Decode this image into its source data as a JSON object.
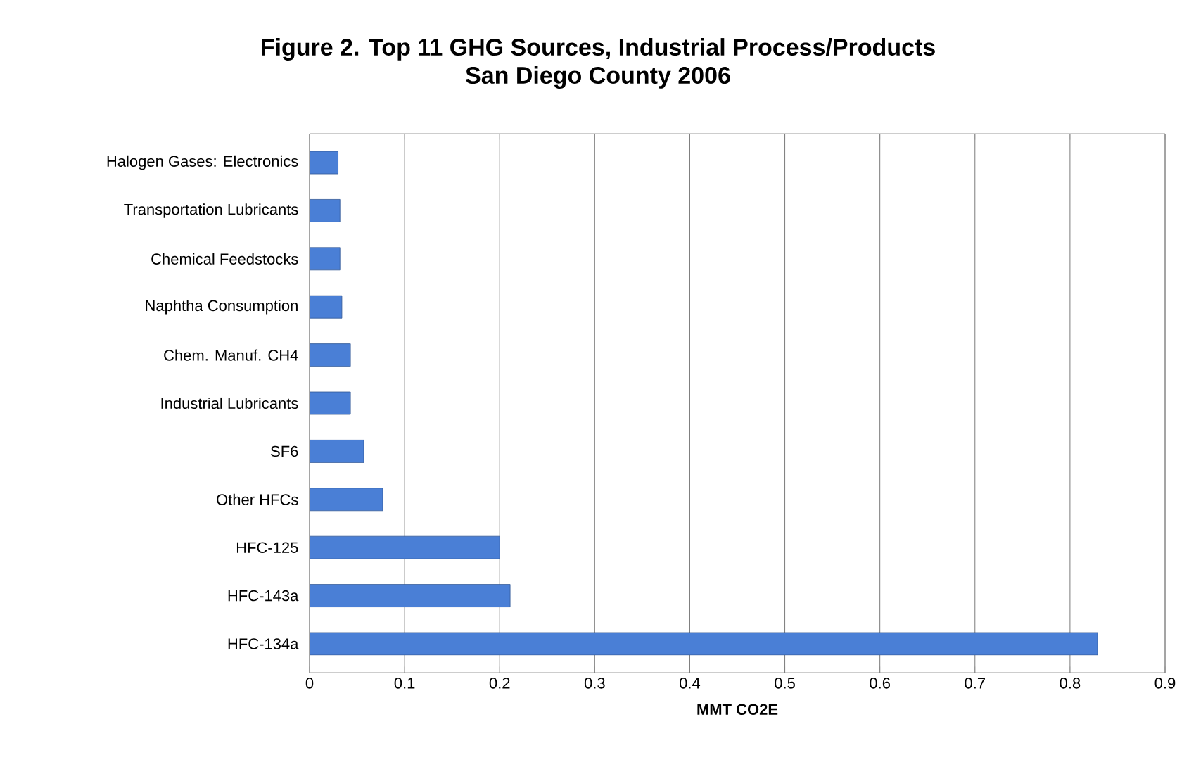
{
  "chart_data": {
    "type": "bar",
    "orientation": "horizontal",
    "title": "Figure 2.  Top 11 GHG Sources, Industrial Process/Products",
    "subtitle": "San Diego County 2006",
    "xlabel": "MMT CO2E",
    "categories": [
      "Halogen Gases: Electronics",
      "Transportation Lubricants",
      "Chemical Feedstocks",
      "Naphtha Consumption",
      "Chem. Manuf. CH4",
      "Industrial Lubricants",
      "SF6",
      "Other HFCs",
      "HFC-125",
      "HFC-143a",
      "HFC-134a"
    ],
    "values": [
      0.03,
      0.032,
      0.032,
      0.034,
      0.043,
      0.043,
      0.057,
      0.077,
      0.2,
      0.211,
      0.829
    ],
    "color": "#4a7fd6",
    "xlim": [
      0,
      0.9
    ],
    "xticks": [
      0,
      0.1,
      0.2,
      0.3,
      0.4,
      0.5,
      0.6,
      0.7,
      0.8,
      0.9
    ],
    "grid": "x"
  }
}
